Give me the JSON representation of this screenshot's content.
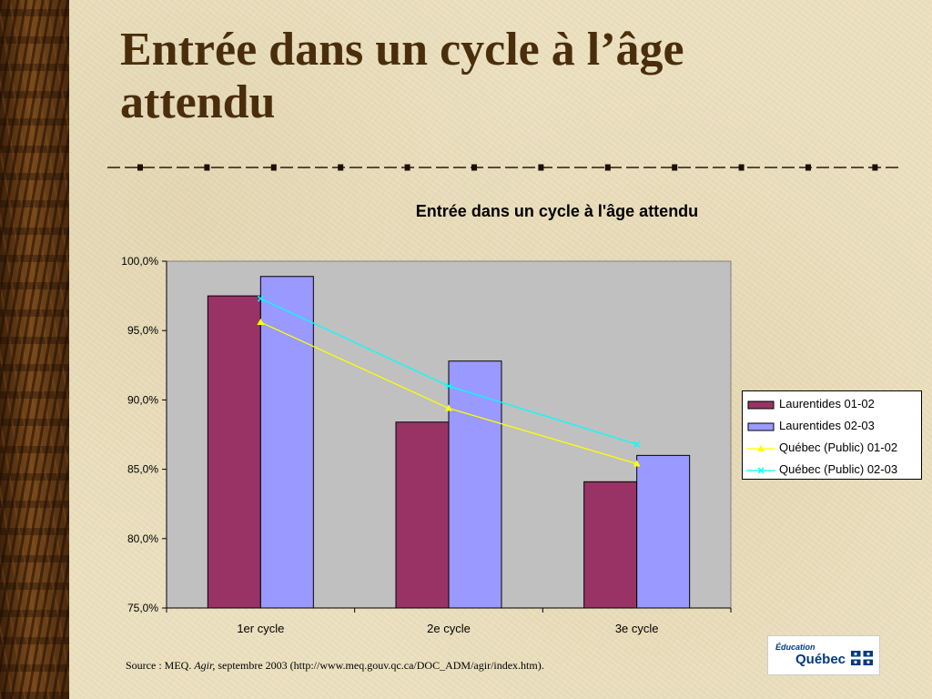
{
  "slide": {
    "title": "Entrée dans un cycle à l’âge attendu",
    "source_prefix": "Source : MEQ. ",
    "source_italic": "Agir,",
    "source_suffix": " septembre 2003 (http://www.meq.gouv.qc.ca/DOC_ADM/agir/index.htm).",
    "logo_line1": "Éducation",
    "logo_line2": "Québec"
  },
  "colors": {
    "title": "#4a2e0c",
    "bar1": "#993366",
    "bar2": "#9999ff",
    "line1": "#ffff00",
    "line2": "#00ffff",
    "plot_bg": "#c0c0c0"
  },
  "icons": [
    "fleur-de-lis-flag-icon"
  ],
  "chart_data": {
    "type": "bar",
    "title": "Entrée dans un cycle à l'âge attendu",
    "categories": [
      "1er cycle",
      "2e cycle",
      "3e cycle"
    ],
    "ylim": [
      75,
      100
    ],
    "yticks": [
      "75,0%",
      "80,0%",
      "85,0%",
      "90,0%",
      "95,0%",
      "100,0%"
    ],
    "ytick_values": [
      75,
      80,
      85,
      90,
      95,
      100
    ],
    "grid": false,
    "legend_position": "right",
    "series": [
      {
        "name": "Laurentides 01-02",
        "kind": "bar",
        "color": "#993366",
        "values": [
          97.5,
          88.4,
          84.1
        ]
      },
      {
        "name": "Laurentides 02-03",
        "kind": "bar",
        "color": "#9999ff",
        "values": [
          98.9,
          92.8,
          86.0
        ]
      },
      {
        "name": "Québec (Public) 01-02",
        "kind": "line",
        "marker": "triangle",
        "color": "#ffff00",
        "values": [
          95.6,
          89.4,
          85.4
        ]
      },
      {
        "name": "Québec (Public) 02-03",
        "kind": "line",
        "marker": "x",
        "color": "#00ffff",
        "values": [
          97.3,
          91.0,
          86.8
        ]
      }
    ]
  }
}
